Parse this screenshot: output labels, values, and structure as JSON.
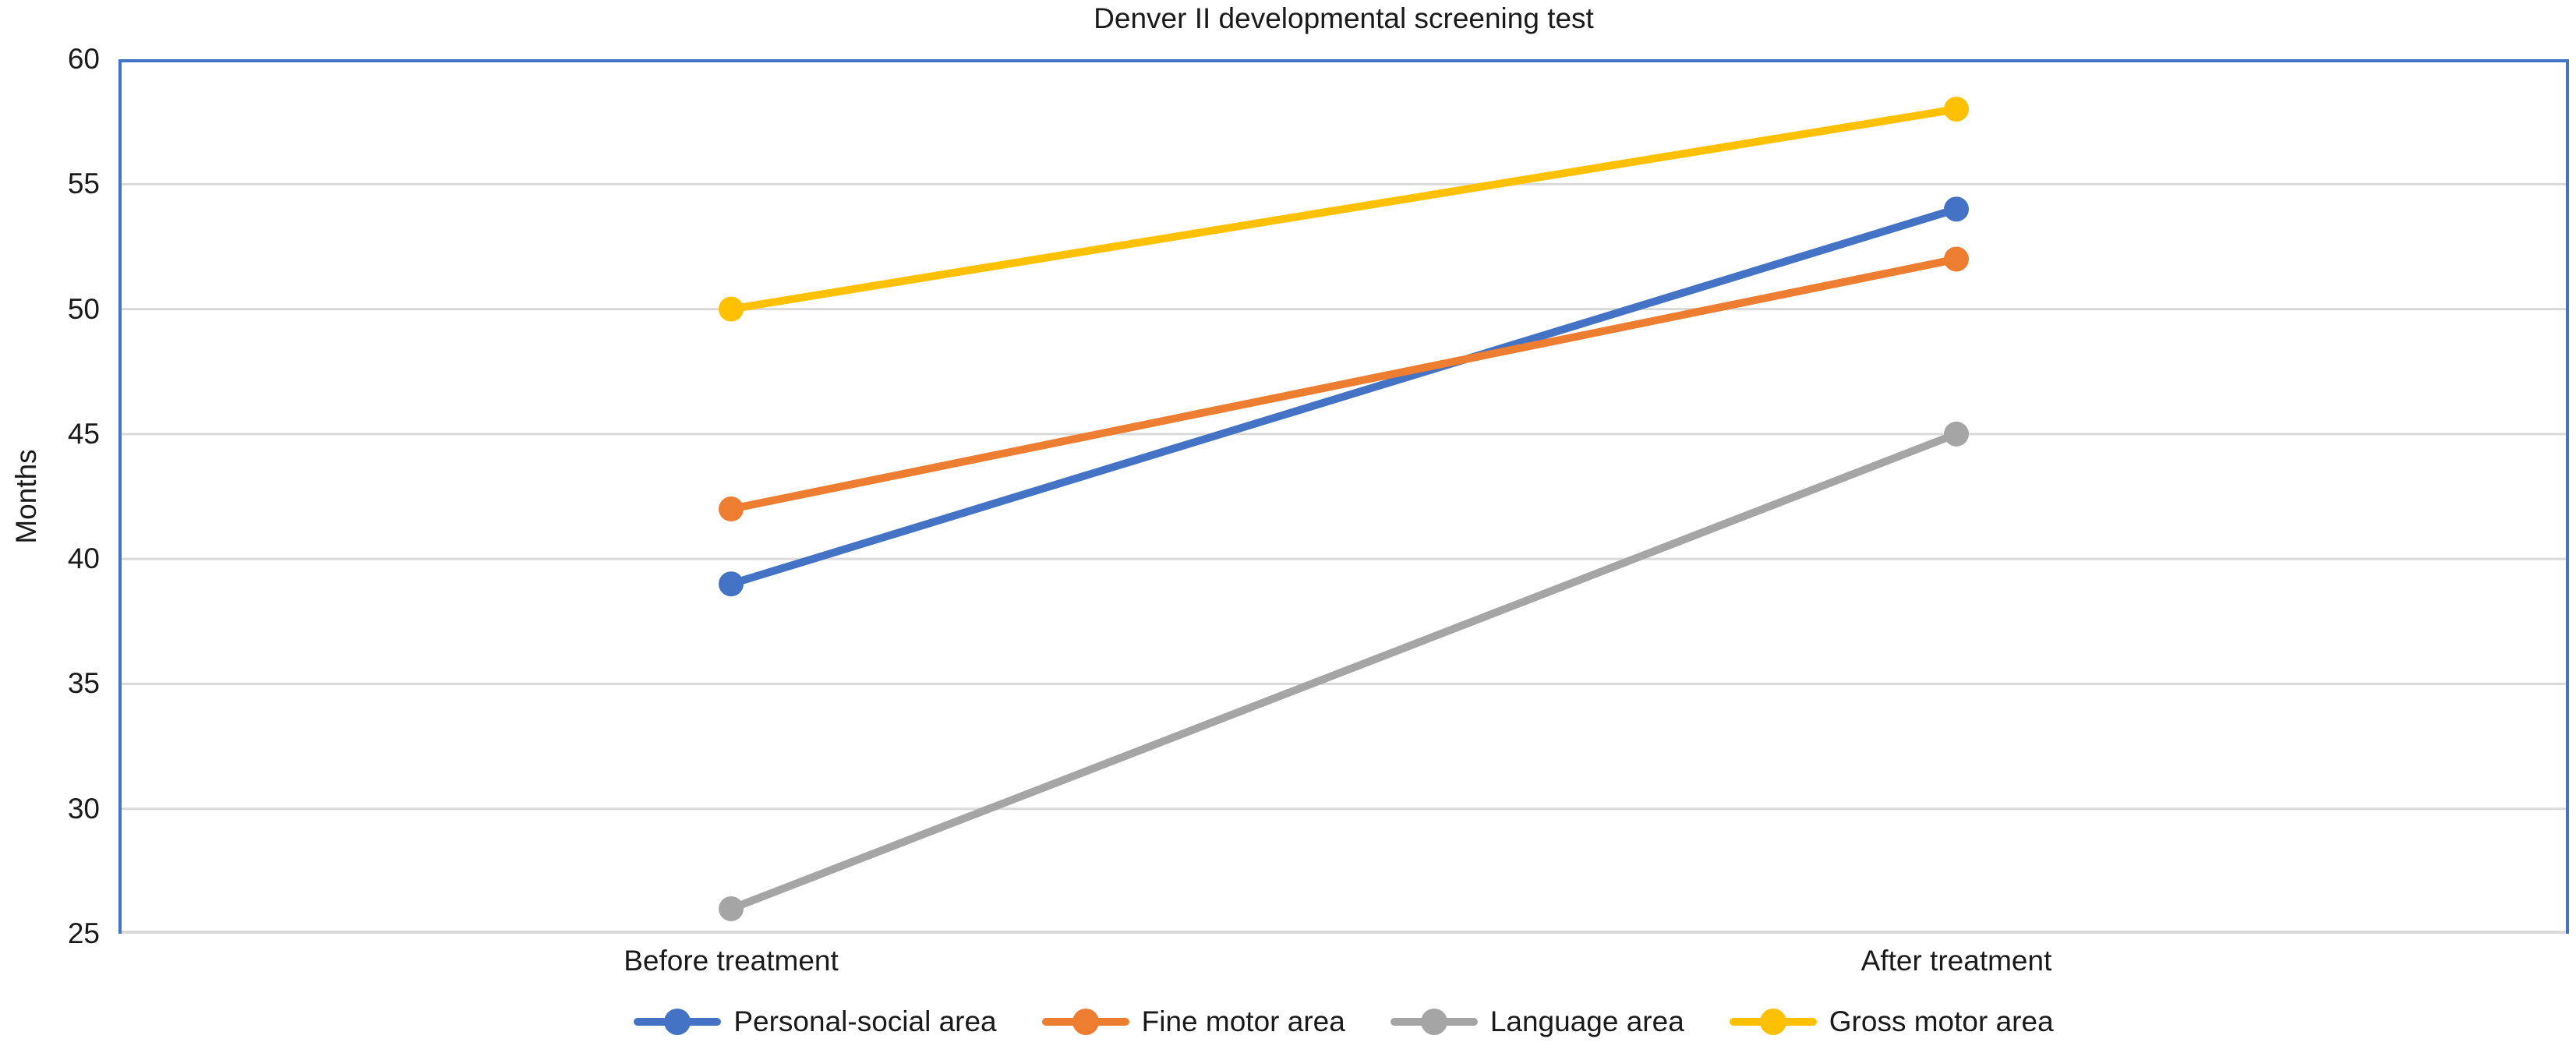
{
  "chart_data": {
    "type": "line",
    "title": "Denver II developmental screening test",
    "categories": [
      "Before treatment",
      "After treatment"
    ],
    "series": [
      {
        "name": "Personal-social area",
        "color": "#4472C4",
        "values": [
          39,
          54
        ]
      },
      {
        "name": "Fine motor area",
        "color": "#ED7D31",
        "values": [
          42,
          52
        ]
      },
      {
        "name": "Language area",
        "color": "#A5A5A5",
        "values": [
          26,
          45
        ]
      },
      {
        "name": "Gross motor area",
        "color": "#FFC000",
        "values": [
          50,
          58
        ]
      }
    ],
    "xlabel": "",
    "ylabel": "Months",
    "ylim": [
      25,
      60
    ],
    "yticks": [
      25,
      30,
      35,
      40,
      45,
      50,
      55,
      60
    ],
    "grid": true,
    "legend_position": "bottom"
  },
  "style": {
    "plot_border_color": "#4472C4",
    "gridline_color": "#D9D9D9",
    "axis_line_color": "#D9D9D9",
    "text_color": "#1a1a1a",
    "background": "#FFFFFF"
  }
}
